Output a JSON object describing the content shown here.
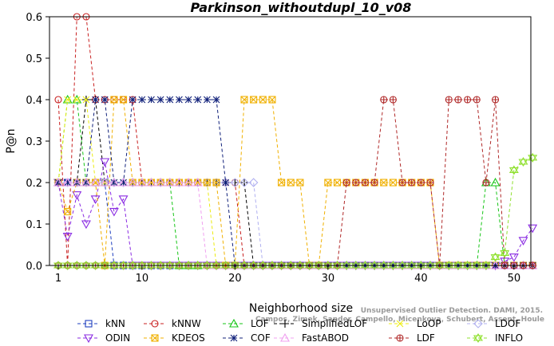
{
  "chart_data": {
    "type": "line",
    "title": "Parkinson_withoutdupl_10_v08",
    "xlabel": "Neighborhood size",
    "ylabel": "P@n",
    "xlim": [
      0,
      53
    ],
    "ylim": [
      0,
      0.6
    ],
    "xticks": [
      1,
      10,
      20,
      30,
      40,
      50
    ],
    "yticks": [
      0.0,
      0.1,
      0.2,
      0.3,
      0.4,
      0.5,
      0.6
    ],
    "ytick_labels": [
      "0.0",
      "0.1",
      "0.2",
      "0.3",
      "0.4",
      "0.5",
      "0.6"
    ],
    "grid": false,
    "legend_position": "bottom",
    "x": [
      1,
      2,
      3,
      4,
      5,
      6,
      7,
      8,
      9,
      10,
      11,
      12,
      13,
      14,
      15,
      16,
      17,
      18,
      19,
      20,
      21,
      22,
      23,
      24,
      25,
      26,
      27,
      28,
      29,
      30,
      31,
      32,
      33,
      34,
      35,
      36,
      37,
      38,
      39,
      40,
      41,
      42,
      43,
      44,
      45,
      46,
      47,
      48,
      49,
      50,
      51,
      52
    ],
    "series": [
      {
        "name": "kNN",
        "color": "#1f3fbf",
        "marker": "square",
        "values": [
          0.2,
          0.2,
          0.2,
          0.2,
          0.2,
          0.2,
          0,
          0,
          0,
          0,
          0,
          0,
          0,
          0,
          0,
          0,
          0,
          0,
          0,
          0,
          0,
          0,
          0,
          0,
          0,
          0,
          0,
          0,
          0,
          0,
          0,
          0,
          0,
          0,
          0,
          0,
          0,
          0,
          0,
          0,
          0,
          0,
          0,
          0,
          0,
          0,
          0,
          0,
          0,
          0,
          0,
          0
        ]
      },
      {
        "name": "kNNW",
        "color": "#c82020",
        "marker": "circle",
        "values": [
          0.4,
          0,
          0.6,
          0.6,
          0.4,
          0.4,
          0.4,
          0.4,
          0.4,
          0.2,
          0.2,
          0.2,
          0.2,
          0.2,
          0.2,
          0.2,
          0.2,
          0.2,
          0.2,
          0.2,
          0,
          0,
          0,
          0,
          0,
          0,
          0,
          0,
          0,
          0,
          0,
          0,
          0,
          0,
          0,
          0,
          0,
          0,
          0,
          0,
          0,
          0,
          0,
          0,
          0,
          0,
          0,
          0,
          0,
          0,
          0,
          0
        ]
      },
      {
        "name": "LOF",
        "color": "#16c516",
        "marker": "triangle-up",
        "values": [
          0.2,
          0.4,
          0.4,
          0.2,
          0.2,
          0.2,
          0.2,
          0.2,
          0.2,
          0.2,
          0.2,
          0.2,
          0.2,
          0,
          0,
          0,
          0,
          0,
          0,
          0,
          0,
          0,
          0,
          0,
          0,
          0,
          0,
          0,
          0,
          0,
          0,
          0,
          0,
          0,
          0,
          0,
          0,
          0,
          0,
          0,
          0,
          0,
          0,
          0,
          0,
          0,
          0.2,
          0.2,
          0,
          0,
          0,
          0
        ]
      },
      {
        "name": "SimplifiedLOF",
        "color": "#000000",
        "marker": "plus",
        "values": [
          0.2,
          0.2,
          0.2,
          0.4,
          0.4,
          0.2,
          0.2,
          0.2,
          0.2,
          0.2,
          0.2,
          0.2,
          0.2,
          0.2,
          0.2,
          0.2,
          0.2,
          0.2,
          0.2,
          0.2,
          0.2,
          0,
          0,
          0,
          0,
          0,
          0,
          0,
          0,
          0,
          0,
          0,
          0,
          0,
          0,
          0,
          0,
          0,
          0,
          0,
          0,
          0,
          0,
          0,
          0,
          0,
          0,
          0,
          0,
          0,
          0,
          0
        ]
      },
      {
        "name": "LoOP",
        "color": "#ecec10",
        "marker": "cross",
        "values": [
          0.2,
          0.4,
          0.4,
          0.4,
          0.2,
          0.2,
          0.2,
          0.2,
          0.2,
          0.2,
          0.2,
          0.2,
          0.2,
          0.2,
          0.2,
          0.2,
          0.2,
          0,
          0,
          0,
          0,
          0,
          0,
          0,
          0,
          0,
          0,
          0,
          0,
          0,
          0,
          0,
          0,
          0,
          0,
          0,
          0,
          0,
          0,
          0,
          0,
          0,
          0,
          0,
          0,
          0,
          0,
          0,
          0,
          0,
          0,
          0
        ]
      },
      {
        "name": "LDOF",
        "color": "#b0b0f0",
        "marker": "diamond",
        "values": [
          0.2,
          0.2,
          0.2,
          0.2,
          0.2,
          0.2,
          0.2,
          0.2,
          0.2,
          0.2,
          0.2,
          0.2,
          0.2,
          0.2,
          0.2,
          0.2,
          0.2,
          0.2,
          0.2,
          0.2,
          0.2,
          0.2,
          0,
          0,
          0,
          0,
          0,
          0,
          0,
          0,
          0,
          0,
          0,
          0,
          0,
          0,
          0,
          0,
          0,
          0,
          0,
          0,
          0,
          0,
          0,
          0,
          0,
          0,
          0,
          0,
          0,
          0
        ]
      },
      {
        "name": "ODIN",
        "color": "#8a2be2",
        "marker": "triangle-down",
        "values": [
          0.2,
          0.07,
          0.17,
          0.1,
          0.16,
          0.25,
          0.13,
          0.16,
          0,
          0,
          0,
          0,
          0,
          0,
          0,
          0,
          0,
          0,
          0,
          0,
          0,
          0,
          0,
          0,
          0,
          0,
          0,
          0,
          0,
          0,
          0,
          0,
          0,
          0,
          0,
          0,
          0,
          0,
          0,
          0,
          0,
          0,
          0,
          0,
          0,
          0,
          0,
          0,
          0.01,
          0.02,
          0.06,
          0.09
        ]
      },
      {
        "name": "KDEOS",
        "color": "#f0b000",
        "marker": "square-x",
        "values": [
          0.2,
          0.13,
          0.2,
          0.2,
          0.2,
          0,
          0.4,
          0.4,
          0.2,
          0.2,
          0.2,
          0.2,
          0.2,
          0.2,
          0.2,
          0.2,
          0.2,
          0.2,
          0,
          0,
          0.4,
          0.4,
          0.4,
          0.4,
          0.2,
          0.2,
          0.2,
          0,
          0,
          0.2,
          0.2,
          0.2,
          0.2,
          0.2,
          0.2,
          0.2,
          0.2,
          0.2,
          0.2,
          0.2,
          0.2,
          0,
          0,
          0,
          0,
          0,
          0,
          0,
          0,
          0,
          0,
          0
        ]
      },
      {
        "name": "COF",
        "color": "#10207a",
        "marker": "star",
        "values": [
          0.2,
          0.2,
          0.2,
          0.2,
          0.4,
          0.4,
          0.2,
          0.2,
          0.4,
          0.4,
          0.4,
          0.4,
          0.4,
          0.4,
          0.4,
          0.4,
          0.4,
          0.4,
          0.2,
          0,
          0,
          0,
          0,
          0,
          0,
          0,
          0,
          0,
          0,
          0,
          0,
          0,
          0,
          0,
          0,
          0,
          0,
          0,
          0,
          0,
          0,
          0,
          0,
          0,
          0,
          0,
          0,
          0,
          0,
          0,
          0,
          0
        ]
      },
      {
        "name": "FastABOD",
        "color": "#f0a0f0",
        "marker": "triangle-up",
        "values": [
          0.2,
          0.2,
          0.2,
          0.2,
          0.2,
          0.2,
          0.2,
          0.2,
          0.2,
          0.2,
          0.2,
          0.2,
          0.2,
          0.2,
          0.2,
          0.2,
          0,
          0,
          0,
          0,
          0,
          0,
          0,
          0,
          0,
          0,
          0,
          0,
          0,
          0,
          0,
          0,
          0,
          0,
          0,
          0,
          0,
          0,
          0,
          0,
          0,
          0,
          0,
          0,
          0,
          0,
          0,
          0,
          0,
          0,
          0,
          0
        ]
      },
      {
        "name": "LDF",
        "color": "#b02828",
        "marker": "circle-plus",
        "values": [
          0,
          0,
          0,
          0,
          0,
          0,
          0,
          0,
          0,
          0,
          0,
          0,
          0,
          0,
          0,
          0,
          0,
          0,
          0,
          0,
          0,
          0,
          0,
          0,
          0,
          0,
          0,
          0,
          0,
          0,
          0,
          0.2,
          0.2,
          0.2,
          0.2,
          0.4,
          0.4,
          0.2,
          0.2,
          0.2,
          0.2,
          0,
          0.4,
          0.4,
          0.4,
          0.4,
          0.2,
          0.4,
          0,
          0,
          0,
          0
        ]
      },
      {
        "name": "INFLO",
        "color": "#90e030",
        "marker": "hexagram",
        "values": [
          0,
          0,
          0,
          0,
          0,
          0,
          0,
          0,
          0,
          0,
          0,
          0,
          0,
          0,
          0,
          0,
          0,
          0,
          0,
          0,
          0,
          0,
          0,
          0,
          0,
          0,
          0,
          0,
          0,
          0,
          0,
          0,
          0,
          0,
          0,
          0,
          0,
          0,
          0,
          0,
          0,
          0,
          0,
          0,
          0,
          0,
          0,
          0.02,
          0.03,
          0.23,
          0.25,
          0.26
        ]
      }
    ]
  },
  "watermark": {
    "line1": "Unsupervised Outlier Detection. DAMI, 2015.",
    "line2": "Campos, Zimek, Sander, Campello, Micenkova, Schubert, Assent, Houle"
  }
}
